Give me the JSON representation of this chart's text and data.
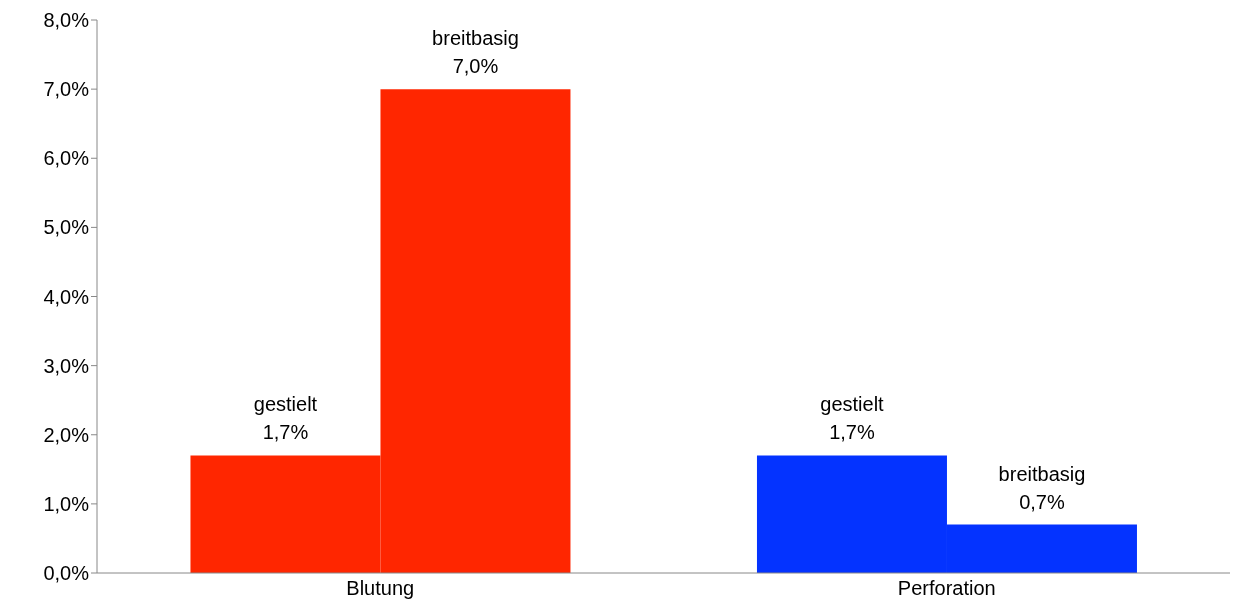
{
  "chart_data": {
    "type": "bar",
    "categories": [
      "Blutung",
      "Perforation"
    ],
    "series": [
      {
        "name": "gestielt",
        "colors": [
          "#ff2600",
          "#0433ff"
        ],
        "values": [
          1.7,
          1.7
        ],
        "value_labels": [
          "1,7%",
          "1,7%"
        ]
      },
      {
        "name": "breitbasig",
        "colors": [
          "#ff2600",
          "#0433ff"
        ],
        "values": [
          7.0,
          0.7
        ],
        "value_labels": [
          "7,0%",
          "0,7%"
        ]
      }
    ],
    "ylim": [
      0,
      8
    ],
    "yticks": [
      {
        "value": 0,
        "label": "0,0%"
      },
      {
        "value": 1,
        "label": "1,0%"
      },
      {
        "value": 2,
        "label": "2,0%"
      },
      {
        "value": 3,
        "label": "3,0%"
      },
      {
        "value": 4,
        "label": "4,0%"
      },
      {
        "value": 5,
        "label": "5,0%"
      },
      {
        "value": 6,
        "label": "6,0%"
      },
      {
        "value": 7,
        "label": "7,0%"
      },
      {
        "value": 8,
        "label": "8,0%"
      }
    ],
    "grid": false,
    "legend": false
  }
}
